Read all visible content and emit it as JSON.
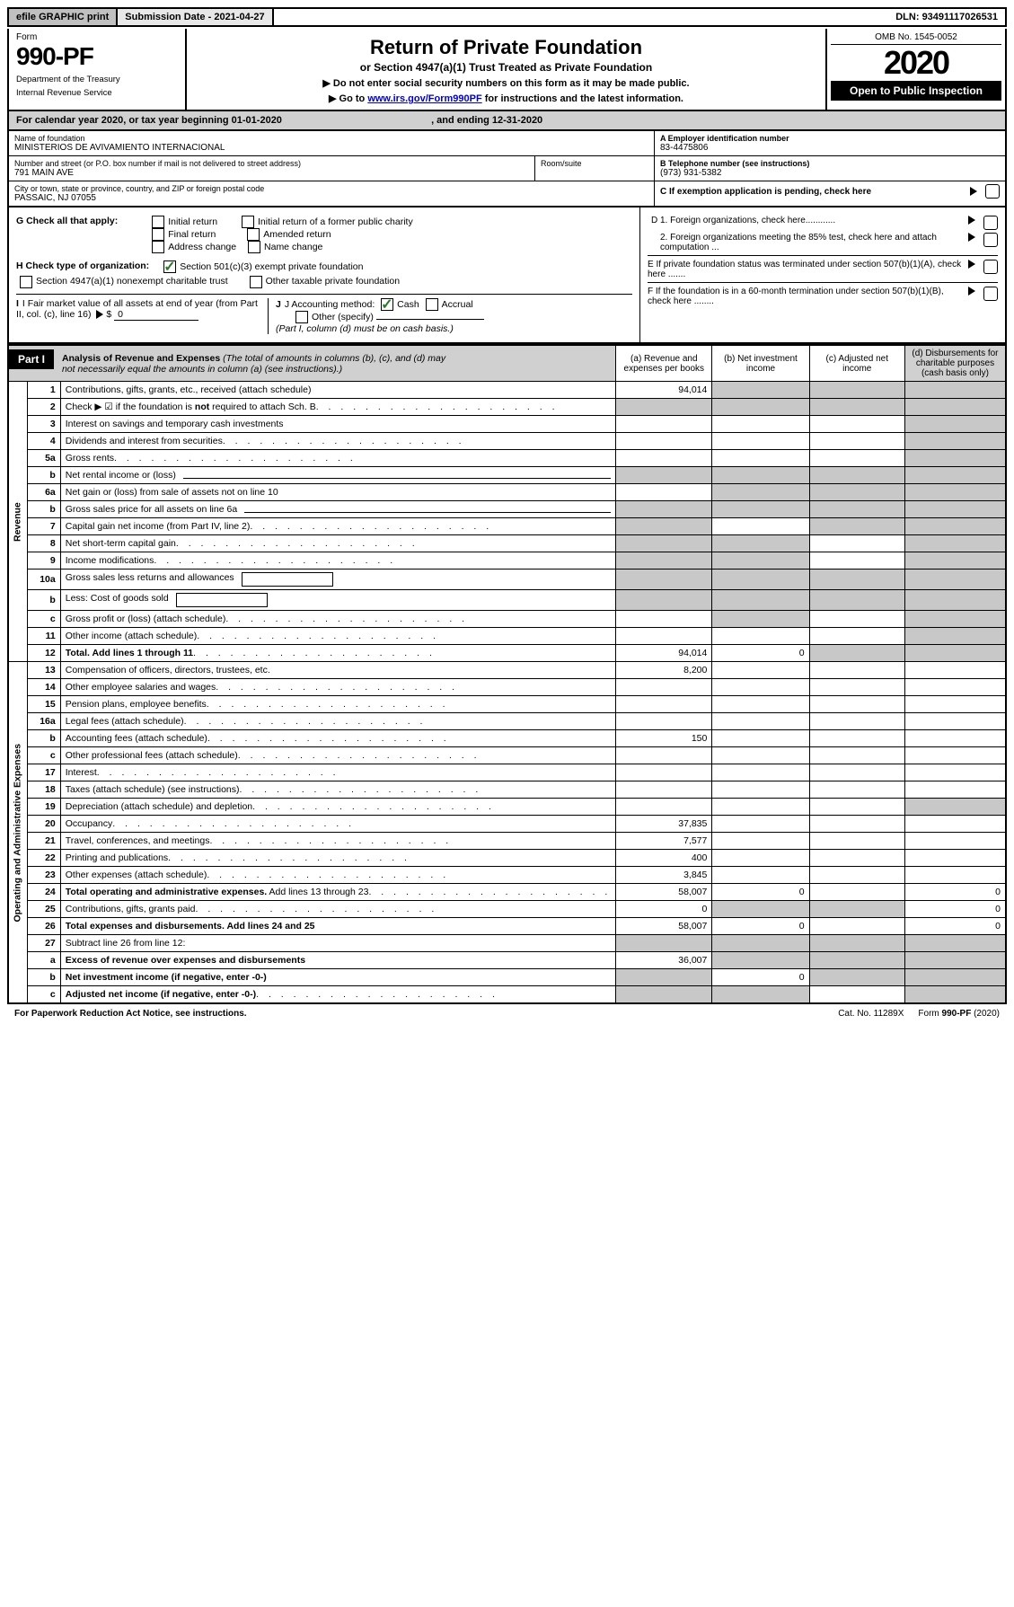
{
  "top": {
    "efile": "efile GRAPHIC print",
    "subdate_label": "Submission Date - ",
    "subdate": "2021-04-27",
    "dln_label": "DLN: ",
    "dln": "93491117026531"
  },
  "header": {
    "form_word": "Form",
    "form_no": "990-PF",
    "dept1": "Department of the Treasury",
    "dept2": "Internal Revenue Service",
    "title": "Return of Private Foundation",
    "subtitle": "or Section 4947(a)(1) Trust Treated as Private Foundation",
    "note1": "▶ Do not enter social security numbers on this form as it may be made public.",
    "note2_pre": "▶ Go to ",
    "note2_link": "www.irs.gov/Form990PF",
    "note2_post": " for instructions and the latest information.",
    "omb": "OMB No. 1545-0052",
    "year": "2020",
    "open": "Open to Public Inspection"
  },
  "cy": {
    "text_pre": "For calendar year 2020, or tax year beginning ",
    "begin": "01-01-2020",
    "text_mid": " , and ending ",
    "end": "12-31-2020"
  },
  "id": {
    "name_lbl": "Name of foundation",
    "name": "MINISTERIOS DE AVIVAMIENTO INTERNACIONAL",
    "addr_lbl": "Number and street (or P.O. box number if mail is not delivered to street address)",
    "addr": "791 MAIN AVE",
    "room_lbl": "Room/suite",
    "city_lbl": "City or town, state or province, country, and ZIP or foreign postal code",
    "city": "PASSAIC, NJ  07055",
    "a_lbl": "A Employer identification number",
    "a_val": "83-4475806",
    "b_lbl": "B Telephone number (see instructions)",
    "b_val": "(973) 931-5382",
    "c_lbl": "C If exemption application is pending, check here"
  },
  "checks": {
    "g_lbl": "G Check all that apply:",
    "g_opts": [
      "Initial return",
      "Initial return of a former public charity",
      "Final return",
      "Amended return",
      "Address change",
      "Name change"
    ],
    "h_lbl": "H Check type of organization:",
    "h_opt1": "Section 501(c)(3) exempt private foundation",
    "h_opt2": "Section 4947(a)(1) nonexempt charitable trust",
    "h_opt3": "Other taxable private foundation",
    "i_lbl": "I Fair market value of all assets at end of year (from Part II, col. (c), line 16)",
    "i_val": "0",
    "j_lbl": "J Accounting method:",
    "j_cash": "Cash",
    "j_accr": "Accrual",
    "j_other": "Other (specify)",
    "j_note": "(Part I, column (d) must be on cash basis.)",
    "d1": "D 1. Foreign organizations, check here............",
    "d2": "2. Foreign organizations meeting the 85% test, check here and attach computation ...",
    "e": "E  If private foundation status was terminated under section 507(b)(1)(A), check here .......",
    "f": "F  If the foundation is in a 60-month termination under section 507(b)(1)(B), check here ........"
  },
  "part1": {
    "label": "Part I",
    "title": "Analysis of Revenue and Expenses",
    "title_note": " (The total of amounts in columns (b), (c), and (d) may not necessarily equal the amounts in column (a) (see instructions).)",
    "col_a": "(a)   Revenue and expenses per books",
    "col_b": "(b)  Net investment income",
    "col_c": "(c)  Adjusted net income",
    "col_d": "(d)  Disbursements for charitable purposes (cash basis only)",
    "v_rev": "Revenue",
    "v_exp": "Operating and Administrative Expenses"
  },
  "rows": [
    {
      "n": "1",
      "d": "Contributions, gifts, grants, etc., received (attach schedule)",
      "a": "94,014",
      "shade_b": true,
      "shade_c": true,
      "shade_d": true
    },
    {
      "n": "2",
      "d_html": "Check ▶ ☑ if the foundation is <b>not</b> required to attach Sch. B",
      "dots": true,
      "shade_a": true,
      "shade_b": true,
      "shade_c": true,
      "shade_d": true
    },
    {
      "n": "3",
      "d": "Interest on savings and temporary cash investments",
      "shade_d": true
    },
    {
      "n": "4",
      "d": "Dividends and interest from securities",
      "dots": true,
      "shade_d": true
    },
    {
      "n": "5a",
      "d": "Gross rents",
      "dots": true,
      "shade_d": true
    },
    {
      "n": "b",
      "d": "Net rental income or (loss)",
      "uline": true,
      "shade_a": true,
      "shade_b": true,
      "shade_c": true,
      "shade_d": true
    },
    {
      "n": "6a",
      "d": "Net gain or (loss) from sale of assets not on line 10",
      "shade_b": true,
      "shade_c": true,
      "shade_d": true
    },
    {
      "n": "b",
      "d": "Gross sales price for all assets on line 6a",
      "uline": true,
      "shade_a": true,
      "shade_b": true,
      "shade_c": true,
      "shade_d": true
    },
    {
      "n": "7",
      "d": "Capital gain net income (from Part IV, line 2)",
      "dots": true,
      "shade_a": true,
      "shade_c": true,
      "shade_d": true
    },
    {
      "n": "8",
      "d": "Net short-term capital gain",
      "dots": true,
      "shade_a": true,
      "shade_b": true,
      "shade_d": true
    },
    {
      "n": "9",
      "d": "Income modifications",
      "dots": true,
      "shade_a": true,
      "shade_b": true,
      "shade_d": true
    },
    {
      "n": "10a",
      "d": "Gross sales less returns and allowances",
      "uline_short": true,
      "shade_a": true,
      "shade_b": true,
      "shade_c": true,
      "shade_d": true
    },
    {
      "n": "b",
      "d": "Less: Cost of goods sold",
      "dots": true,
      "uline_short": true,
      "shade_a": true,
      "shade_b": true,
      "shade_c": true,
      "shade_d": true
    },
    {
      "n": "c",
      "d": "Gross profit or (loss) (attach schedule)",
      "dots": true,
      "shade_b": true,
      "shade_d": true
    },
    {
      "n": "11",
      "d": "Other income (attach schedule)",
      "dots": true,
      "shade_d": true
    },
    {
      "n": "12",
      "d": "Total. Add lines 1 through 11",
      "bold": true,
      "dots": true,
      "a": "94,014",
      "b": "0",
      "shade_c": true,
      "shade_d": true
    },
    {
      "n": "13",
      "d": "Compensation of officers, directors, trustees, etc.",
      "a": "8,200"
    },
    {
      "n": "14",
      "d": "Other employee salaries and wages",
      "dots": true
    },
    {
      "n": "15",
      "d": "Pension plans, employee benefits",
      "dots": true
    },
    {
      "n": "16a",
      "d": "Legal fees (attach schedule)",
      "dots": true
    },
    {
      "n": "b",
      "d": "Accounting fees (attach schedule)",
      "dots": true,
      "a": "150"
    },
    {
      "n": "c",
      "d": "Other professional fees (attach schedule)",
      "dots": true
    },
    {
      "n": "17",
      "d": "Interest",
      "dots": true
    },
    {
      "n": "18",
      "d": "Taxes (attach schedule) (see instructions)",
      "dots": true
    },
    {
      "n": "19",
      "d": "Depreciation (attach schedule) and depletion",
      "dots": true,
      "shade_d": true
    },
    {
      "n": "20",
      "d": "Occupancy",
      "dots": true,
      "a": "37,835"
    },
    {
      "n": "21",
      "d": "Travel, conferences, and meetings",
      "dots": true,
      "a": "7,577"
    },
    {
      "n": "22",
      "d": "Printing and publications",
      "dots": true,
      "a": "400"
    },
    {
      "n": "23",
      "d": "Other expenses (attach schedule)",
      "dots": true,
      "a": "3,845"
    },
    {
      "n": "24",
      "d": "Total operating and administrative expenses. Add lines 13 through 23",
      "bold_first": true,
      "dots": true,
      "a": "58,007",
      "b": "0",
      "d_col": "0"
    },
    {
      "n": "25",
      "d": "Contributions, gifts, grants paid",
      "dots": true,
      "a": "0",
      "shade_b": true,
      "shade_c": true,
      "d_col": "0"
    },
    {
      "n": "26",
      "d": "Total expenses and disbursements. Add lines 24 and 25",
      "bold": true,
      "a": "58,007",
      "b": "0",
      "d_col": "0"
    },
    {
      "n": "27",
      "d": "Subtract line 26 from line 12:",
      "shade_a": true,
      "shade_b": true,
      "shade_c": true,
      "shade_d": true
    },
    {
      "n": "a",
      "d": "Excess of revenue over expenses and disbursements",
      "bold": true,
      "a": "36,007",
      "shade_b": true,
      "shade_c": true,
      "shade_d": true
    },
    {
      "n": "b",
      "d": "Net investment income (if negative, enter -0-)",
      "bold": true,
      "shade_a": true,
      "b": "0",
      "shade_c": true,
      "shade_d": true
    },
    {
      "n": "c",
      "d": "Adjusted net income (if negative, enter -0-)",
      "bold": true,
      "dots": true,
      "shade_a": true,
      "shade_b": true,
      "shade_d": true
    }
  ],
  "footer": {
    "left": "For Paperwork Reduction Act Notice, see instructions.",
    "mid": "Cat. No. 11289X",
    "right": "Form 990-PF (2020)"
  }
}
